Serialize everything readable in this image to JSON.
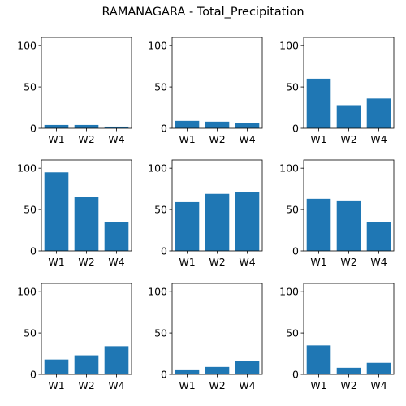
{
  "chart_data": {
    "type": "bar",
    "title": "RAMANAGARA - Total_Precipitation",
    "bar_color": "#1f77b4",
    "ylim": [
      0,
      110
    ],
    "yticks": [
      0,
      50,
      100
    ],
    "grid": false,
    "layout": "3x3 grid of subplots",
    "subplots": [
      {
        "categories": [
          "W1",
          "W2",
          "W4"
        ],
        "values": [
          4,
          4,
          2
        ]
      },
      {
        "categories": [
          "W1",
          "W2",
          "W4"
        ],
        "values": [
          9,
          8,
          6
        ]
      },
      {
        "categories": [
          "W1",
          "W2",
          "W4"
        ],
        "values": [
          60,
          28,
          36
        ]
      },
      {
        "categories": [
          "W1",
          "W2",
          "W4"
        ],
        "values": [
          95,
          65,
          35
        ]
      },
      {
        "categories": [
          "W1",
          "W2",
          "W4"
        ],
        "values": [
          59,
          69,
          71
        ]
      },
      {
        "categories": [
          "W1",
          "W2",
          "W4"
        ],
        "values": [
          63,
          61,
          35
        ]
      },
      {
        "categories": [
          "W1",
          "W2",
          "W4"
        ],
        "values": [
          18,
          23,
          34
        ]
      },
      {
        "categories": [
          "W1",
          "W2",
          "W4"
        ],
        "values": [
          5,
          9,
          16
        ]
      },
      {
        "categories": [
          "W1",
          "W2",
          "W4"
        ],
        "values": [
          35,
          8,
          14
        ]
      }
    ]
  }
}
